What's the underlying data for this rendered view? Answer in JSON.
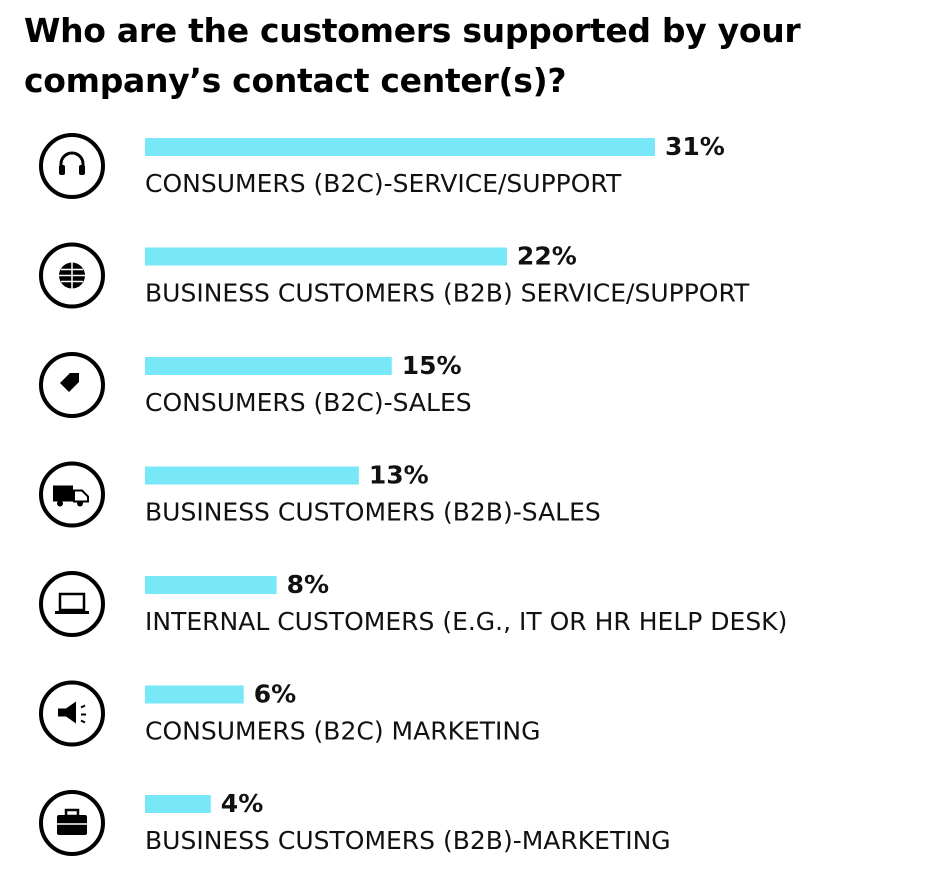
{
  "chart_data": {
    "type": "bar",
    "orientation": "horizontal",
    "title": "Who are the customers supported by your company’s contact center(s)?",
    "categories": [
      "CONSUMERS (B2C)-SERVICE/SUPPORT",
      "BUSINESS CUSTOMERS (B2B) SERVICE/SUPPORT",
      "CONSUMERS (B2C)-SALES",
      "BUSINESS CUSTOMERS (B2B)-SALES",
      "INTERNAL CUSTOMERS (E.G., IT OR HR HELP DESK)",
      "CONSUMERS (B2C) MARKETING",
      "BUSINESS CUSTOMERS (B2B)-MARKETING"
    ],
    "values": [
      31,
      22,
      15,
      13,
      8,
      6,
      4
    ],
    "value_labels": [
      "31%",
      "22%",
      "15%",
      "13%",
      "8%",
      "6%",
      "4%"
    ],
    "color": "#78e7f7"
  }
}
